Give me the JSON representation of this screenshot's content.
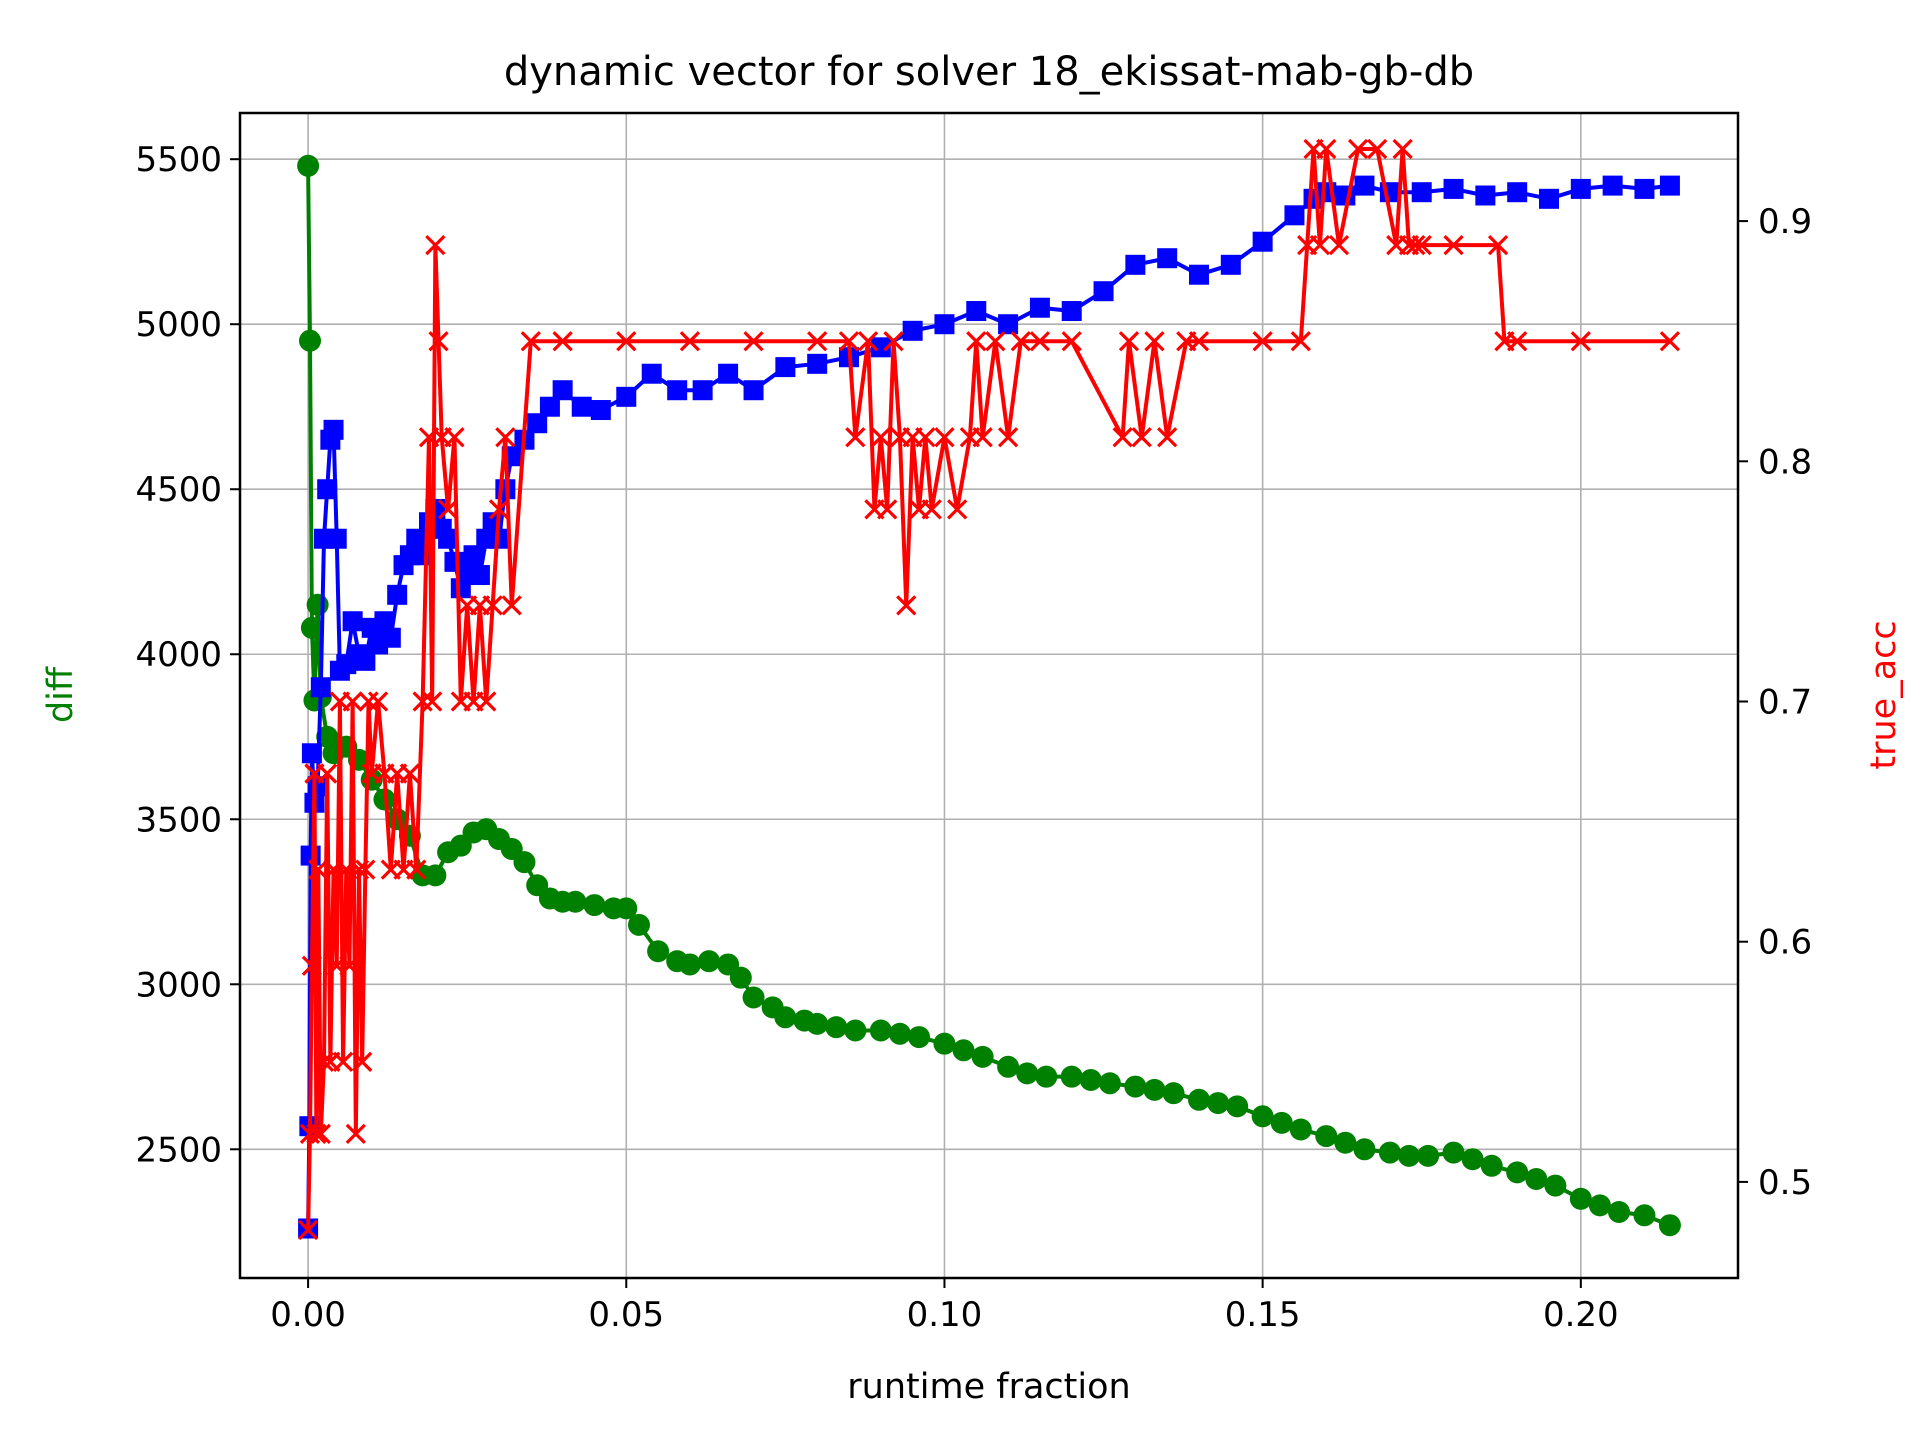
{
  "chart_data": {
    "type": "line",
    "title": "dynamic vector for solver 18_ekissat-mab-gb-db",
    "xlabel": "runtime fraction",
    "ylabel_left": "diff",
    "ylabel_right": "true_acc",
    "xlim": [
      -0.0107,
      0.2247
    ],
    "ylim_left": [
      2110,
      5640
    ],
    "ylim_right": [
      0.46,
      0.945
    ],
    "x_ticks": [
      0.0,
      0.05,
      0.1,
      0.15,
      0.2
    ],
    "x_tick_labels": [
      "0.00",
      "0.05",
      "0.10",
      "0.15",
      "0.20"
    ],
    "y_left_ticks": [
      2500,
      3000,
      3500,
      4000,
      4500,
      5000,
      5500
    ],
    "y_left_tick_labels": [
      "2500",
      "3000",
      "3500",
      "4000",
      "4500",
      "5000",
      "5500"
    ],
    "y_right_ticks": [
      0.5,
      0.6,
      0.7,
      0.8,
      0.9
    ],
    "y_right_tick_labels": [
      "0.5",
      "0.6",
      "0.7",
      "0.8",
      "0.9"
    ],
    "grid": true,
    "colors": {
      "diff": "#008000",
      "blue_series": "#0000ff",
      "true_acc": "#ff0000"
    },
    "series": [
      {
        "axis": "left",
        "color": "#008000",
        "marker": "circle",
        "x": [
          0.0,
          0.0003,
          0.0006,
          0.001,
          0.0015,
          0.002,
          0.003,
          0.004,
          0.006,
          0.008,
          0.01,
          0.012,
          0.014,
          0.016,
          0.018,
          0.02,
          0.022,
          0.024,
          0.026,
          0.028,
          0.03,
          0.032,
          0.034,
          0.036,
          0.038,
          0.04,
          0.042,
          0.045,
          0.048,
          0.05,
          0.052,
          0.055,
          0.058,
          0.06,
          0.063,
          0.066,
          0.068,
          0.07,
          0.073,
          0.075,
          0.078,
          0.08,
          0.083,
          0.086,
          0.09,
          0.093,
          0.096,
          0.1,
          0.103,
          0.106,
          0.11,
          0.113,
          0.116,
          0.12,
          0.123,
          0.126,
          0.13,
          0.133,
          0.136,
          0.14,
          0.143,
          0.146,
          0.15,
          0.153,
          0.156,
          0.16,
          0.163,
          0.166,
          0.17,
          0.173,
          0.176,
          0.18,
          0.183,
          0.186,
          0.19,
          0.193,
          0.196,
          0.2,
          0.203,
          0.206,
          0.21,
          0.214
        ],
        "y": [
          5480,
          4950,
          4080,
          3860,
          4150,
          3870,
          3750,
          3700,
          3720,
          3680,
          3620,
          3560,
          3500,
          3450,
          3330,
          3330,
          3400,
          3420,
          3460,
          3470,
          3440,
          3410,
          3370,
          3300,
          3260,
          3250,
          3250,
          3240,
          3230,
          3230,
          3180,
          3100,
          3070,
          3060,
          3070,
          3060,
          3020,
          2960,
          2930,
          2900,
          2890,
          2880,
          2870,
          2860,
          2860,
          2850,
          2840,
          2820,
          2800,
          2780,
          2750,
          2730,
          2720,
          2720,
          2710,
          2700,
          2690,
          2680,
          2670,
          2650,
          2640,
          2630,
          2600,
          2580,
          2560,
          2540,
          2520,
          2500,
          2490,
          2480,
          2480,
          2490,
          2470,
          2450,
          2430,
          2410,
          2390,
          2350,
          2330,
          2310,
          2300,
          2270
        ]
      },
      {
        "axis": "left",
        "color": "#0000ff",
        "marker": "square",
        "x": [
          0.0,
          0.0002,
          0.0004,
          0.0006,
          0.001,
          0.0015,
          0.002,
          0.0025,
          0.003,
          0.0035,
          0.004,
          0.0045,
          0.005,
          0.006,
          0.007,
          0.008,
          0.009,
          0.01,
          0.011,
          0.012,
          0.013,
          0.014,
          0.015,
          0.016,
          0.017,
          0.018,
          0.019,
          0.02,
          0.021,
          0.022,
          0.023,
          0.024,
          0.025,
          0.026,
          0.027,
          0.028,
          0.029,
          0.03,
          0.031,
          0.032,
          0.034,
          0.036,
          0.038,
          0.04,
          0.043,
          0.046,
          0.05,
          0.054,
          0.058,
          0.062,
          0.066,
          0.07,
          0.075,
          0.08,
          0.085,
          0.09,
          0.095,
          0.1,
          0.105,
          0.11,
          0.115,
          0.12,
          0.125,
          0.13,
          0.135,
          0.14,
          0.145,
          0.15,
          0.155,
          0.158,
          0.16,
          0.163,
          0.166,
          0.17,
          0.175,
          0.18,
          0.185,
          0.19,
          0.195,
          0.2,
          0.205,
          0.21,
          0.214
        ],
        "y": [
          2260,
          2570,
          3390,
          3700,
          3550,
          3600,
          3900,
          4350,
          4500,
          4650,
          4680,
          4350,
          3950,
          3970,
          4100,
          4000,
          3980,
          4080,
          4030,
          4100,
          4050,
          4180,
          4270,
          4300,
          4350,
          4300,
          4400,
          4440,
          4380,
          4350,
          4280,
          4200,
          4250,
          4300,
          4240,
          4350,
          4400,
          4350,
          4500,
          4600,
          4650,
          4700,
          4750,
          4800,
          4750,
          4740,
          4780,
          4850,
          4800,
          4800,
          4850,
          4800,
          4870,
          4880,
          4900,
          4930,
          4980,
          5000,
          5040,
          5000,
          5050,
          5040,
          5100,
          5180,
          5200,
          5150,
          5180,
          5250,
          5330,
          5380,
          5400,
          5390,
          5420,
          5400,
          5400,
          5410,
          5390,
          5400,
          5380,
          5410,
          5420,
          5410,
          5420
        ]
      },
      {
        "axis": "right",
        "color": "#ff0000",
        "marker": "x",
        "x": [
          0.0,
          0.0003,
          0.0006,
          0.001,
          0.0013,
          0.0016,
          0.002,
          0.0025,
          0.003,
          0.0035,
          0.004,
          0.0045,
          0.005,
          0.0055,
          0.006,
          0.0065,
          0.007,
          0.0075,
          0.008,
          0.0085,
          0.009,
          0.0095,
          0.01,
          0.011,
          0.012,
          0.013,
          0.014,
          0.015,
          0.016,
          0.017,
          0.018,
          0.019,
          0.0195,
          0.02,
          0.0205,
          0.021,
          0.022,
          0.023,
          0.024,
          0.025,
          0.026,
          0.027,
          0.028,
          0.029,
          0.03,
          0.031,
          0.032,
          0.035,
          0.04,
          0.05,
          0.06,
          0.07,
          0.08,
          0.085,
          0.086,
          0.088,
          0.089,
          0.09,
          0.091,
          0.092,
          0.093,
          0.094,
          0.095,
          0.096,
          0.097,
          0.098,
          0.1,
          0.102,
          0.104,
          0.105,
          0.106,
          0.108,
          0.11,
          0.112,
          0.115,
          0.12,
          0.128,
          0.129,
          0.131,
          0.133,
          0.135,
          0.138,
          0.14,
          0.15,
          0.156,
          0.157,
          0.158,
          0.159,
          0.16,
          0.162,
          0.165,
          0.168,
          0.171,
          0.172,
          0.173,
          0.174,
          0.175,
          0.18,
          0.187,
          0.188,
          0.19,
          0.2,
          0.214
        ],
        "y": [
          0.48,
          0.52,
          0.59,
          0.67,
          0.52,
          0.63,
          0.52,
          0.55,
          0.67,
          0.55,
          0.63,
          0.59,
          0.7,
          0.55,
          0.63,
          0.59,
          0.7,
          0.52,
          0.63,
          0.55,
          0.63,
          0.7,
          0.67,
          0.7,
          0.67,
          0.63,
          0.67,
          0.63,
          0.67,
          0.63,
          0.7,
          0.81,
          0.7,
          0.89,
          0.85,
          0.81,
          0.78,
          0.81,
          0.7,
          0.74,
          0.7,
          0.74,
          0.7,
          0.74,
          0.78,
          0.81,
          0.74,
          0.85,
          0.85,
          0.85,
          0.85,
          0.85,
          0.85,
          0.85,
          0.81,
          0.85,
          0.78,
          0.81,
          0.78,
          0.85,
          0.81,
          0.74,
          0.81,
          0.78,
          0.81,
          0.78,
          0.81,
          0.78,
          0.81,
          0.85,
          0.81,
          0.85,
          0.81,
          0.85,
          0.85,
          0.85,
          0.81,
          0.85,
          0.81,
          0.85,
          0.81,
          0.85,
          0.85,
          0.85,
          0.85,
          0.89,
          0.93,
          0.89,
          0.93,
          0.89,
          0.93,
          0.93,
          0.89,
          0.93,
          0.89,
          0.89,
          0.89,
          0.89,
          0.89,
          0.85,
          0.85,
          0.85,
          0.85
        ]
      }
    ]
  }
}
